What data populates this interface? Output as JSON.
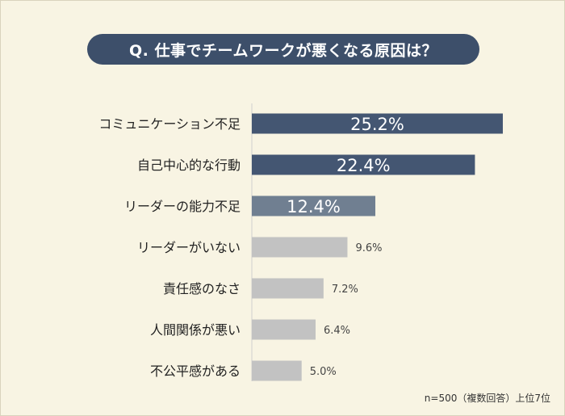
{
  "title": "Q. 仕事でチームワークが悪くなる原因は？",
  "note": "n=500（複数回答）上位7位",
  "colors": {
    "background": "#f8f4e3",
    "title_bg": "#3d4f6a",
    "bar_dark": "#445672",
    "bar_mid": "#707f91",
    "bar_light": "#c2c2c2",
    "axis": "#cfcfcf"
  },
  "chart_data": {
    "type": "bar",
    "orientation": "horizontal",
    "title": "Q. 仕事でチームワークが悪くなる原因は？",
    "categories": [
      "コミュニケーション不足",
      "自己中心的な行動",
      "リーダーの能力不足",
      "リーダーがいない",
      "責任感のなさ",
      "人間関係が悪い",
      "不公平感がある"
    ],
    "values": [
      25.2,
      22.4,
      12.4,
      9.6,
      7.2,
      6.4,
      5.0
    ],
    "labels": [
      "25.2%",
      "22.4%",
      "12.4%",
      "9.6%",
      "7.2%",
      "6.4%",
      "5.0%"
    ],
    "unit": "%",
    "xlim": [
      0,
      26
    ]
  }
}
